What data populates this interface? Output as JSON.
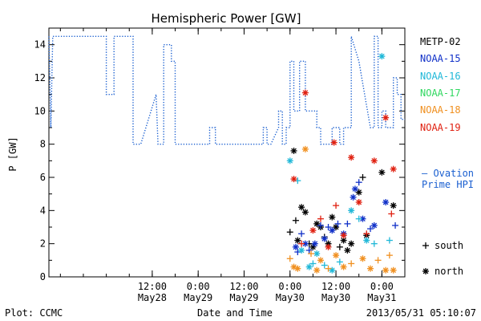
{
  "chart_data": {
    "type": "scatter",
    "title": "Hemispheric Power [GW]",
    "ylabel": "P [GW]",
    "xlabel": "Date and Time",
    "ylim": [
      0,
      15
    ],
    "xlim": [
      "2013-05-27T09:00",
      "2013-05-31T06:00"
    ],
    "yticks": [
      "0",
      "2",
      "4",
      "6",
      "8",
      "10",
      "12",
      "14"
    ],
    "xticks": [
      {
        "at": "2013-05-28T12:00",
        "time": "12:00",
        "date": "May28"
      },
      {
        "at": "2013-05-29T00:00",
        "time": "0:00",
        "date": "May29"
      },
      {
        "at": "2013-05-29T12:00",
        "time": "12:00",
        "date": "May29"
      },
      {
        "at": "2013-05-30T00:00",
        "time": "0:00",
        "date": "May30"
      },
      {
        "at": "2013-05-30T12:00",
        "time": "12:00",
        "date": "May30"
      },
      {
        "at": "2013-05-31T00:00",
        "time": "0:00",
        "date": "May31"
      }
    ],
    "legend_position": "right",
    "colors": {
      "ovation": "#1a5fd0",
      "METP-02": "#000000",
      "NOAA-15": "#1030c8",
      "NOAA-16": "#20b8d8",
      "NOAA-17": "#30d860",
      "NOAA-18": "#f09020",
      "NOAA-19": "#e02010"
    },
    "ovation_line": {
      "name": "Ovation Prime HPI",
      "points": [
        [
          "2013-05-27T09:00",
          14.5
        ],
        [
          "2013-05-27T09:30",
          9
        ],
        [
          "2013-05-27T10:00",
          14.5
        ],
        [
          "2013-05-28T00:00",
          14.5
        ],
        [
          "2013-05-28T00:00",
          11
        ],
        [
          "2013-05-28T02:00",
          11
        ],
        [
          "2013-05-28T02:00",
          14.5
        ],
        [
          "2013-05-28T07:00",
          14.5
        ],
        [
          "2013-05-28T07:00",
          8
        ],
        [
          "2013-05-28T09:00",
          8
        ],
        [
          "2013-05-28T13:00",
          11
        ],
        [
          "2013-05-28T13:30",
          8
        ],
        [
          "2013-05-28T15:00",
          8
        ],
        [
          "2013-05-28T15:00",
          14
        ],
        [
          "2013-05-28T17:00",
          14
        ],
        [
          "2013-05-28T17:00",
          13
        ],
        [
          "2013-05-28T18:00",
          13
        ],
        [
          "2013-05-28T18:00",
          8
        ],
        [
          "2013-05-29T03:00",
          8
        ],
        [
          "2013-05-29T03:00",
          9
        ],
        [
          "2013-05-29T04:30",
          9
        ],
        [
          "2013-05-29T04:30",
          8
        ],
        [
          "2013-05-29T17:00",
          8
        ],
        [
          "2013-05-29T17:00",
          9
        ],
        [
          "2013-05-29T18:00",
          9
        ],
        [
          "2013-05-29T18:00",
          8
        ],
        [
          "2013-05-29T19:00",
          8
        ],
        [
          "2013-05-29T21:00",
          9
        ],
        [
          "2013-05-29T21:00",
          10
        ],
        [
          "2013-05-29T22:00",
          10
        ],
        [
          "2013-05-29T22:00",
          8
        ],
        [
          "2013-05-29T23:00",
          8
        ],
        [
          "2013-05-29T23:00",
          9
        ],
        [
          "2013-05-30T00:00",
          9
        ],
        [
          "2013-05-30T00:00",
          13
        ],
        [
          "2013-05-30T01:00",
          13
        ],
        [
          "2013-05-30T01:00",
          10
        ],
        [
          "2013-05-30T02:30",
          10
        ],
        [
          "2013-05-30T02:30",
          13
        ],
        [
          "2013-05-30T04:00",
          13
        ],
        [
          "2013-05-30T04:00",
          10
        ],
        [
          "2013-05-30T07:00",
          10
        ],
        [
          "2013-05-30T07:00",
          9
        ],
        [
          "2013-05-30T08:00",
          9
        ],
        [
          "2013-05-30T08:00",
          8
        ],
        [
          "2013-05-30T11:00",
          8
        ],
        [
          "2013-05-30T11:00",
          9
        ],
        [
          "2013-05-30T13:00",
          9
        ],
        [
          "2013-05-30T13:00",
          8
        ],
        [
          "2013-05-30T14:00",
          8
        ],
        [
          "2013-05-30T14:00",
          9
        ],
        [
          "2013-05-30T16:00",
          9
        ],
        [
          "2013-05-30T16:00",
          14.5
        ],
        [
          "2013-05-30T18:00",
          13
        ],
        [
          "2013-05-30T21:00",
          9
        ],
        [
          "2013-05-30T22:00",
          9
        ],
        [
          "2013-05-30T22:00",
          14.5
        ],
        [
          "2013-05-30T23:00",
          14.5
        ],
        [
          "2013-05-30T23:00",
          9
        ],
        [
          "2013-05-31T00:00",
          9
        ],
        [
          "2013-05-31T00:00",
          10
        ],
        [
          "2013-05-31T01:00",
          10
        ],
        [
          "2013-05-31T01:00",
          9
        ],
        [
          "2013-05-31T03:00",
          9
        ],
        [
          "2013-05-31T03:00",
          12
        ],
        [
          "2013-05-31T04:00",
          12
        ],
        [
          "2013-05-31T04:00",
          11
        ],
        [
          "2013-05-31T05:00",
          11
        ],
        [
          "2013-05-31T05:00",
          9.5
        ],
        [
          "2013-05-31T06:00",
          9.5
        ]
      ]
    },
    "series": [
      {
        "name": "METP-02",
        "points": [
          [
            "2013-05-30T00:00",
            2.7,
            "south"
          ],
          [
            "2013-05-30T01:00",
            7.6,
            "north"
          ],
          [
            "2013-05-30T01:30",
            3.4,
            "south"
          ],
          [
            "2013-05-30T02:00",
            2.2,
            "north"
          ],
          [
            "2013-05-30T03:00",
            4.2,
            "north"
          ],
          [
            "2013-05-30T04:00",
            3.9,
            "north"
          ],
          [
            "2013-05-30T05:00",
            2.0,
            "south"
          ],
          [
            "2013-05-30T06:00",
            1.8,
            "north"
          ],
          [
            "2013-05-30T07:00",
            3.2,
            "north"
          ],
          [
            "2013-05-30T08:00",
            3.0,
            "north"
          ],
          [
            "2013-05-30T09:00",
            2.4,
            "south"
          ],
          [
            "2013-05-30T10:00",
            2.0,
            "north"
          ],
          [
            "2013-05-30T11:00",
            3.6,
            "north"
          ],
          [
            "2013-05-30T12:00",
            3.0,
            "north"
          ],
          [
            "2013-05-30T13:00",
            1.8,
            "south"
          ],
          [
            "2013-05-30T14:00",
            2.2,
            "north"
          ],
          [
            "2013-05-30T15:00",
            1.6,
            "north"
          ],
          [
            "2013-05-30T16:00",
            2.0,
            "north"
          ],
          [
            "2013-05-30T18:00",
            5.1,
            "north"
          ],
          [
            "2013-05-30T19:00",
            6.0,
            "south"
          ],
          [
            "2013-05-30T20:00",
            2.5,
            "north"
          ],
          [
            "2013-05-31T00:00",
            6.3,
            "north"
          ],
          [
            "2013-05-31T03:00",
            4.3,
            "north"
          ]
        ]
      },
      {
        "name": "NOAA-15",
        "points": [
          [
            "2013-05-30T01:30",
            1.8,
            "north"
          ],
          [
            "2013-05-30T02:00",
            1.5,
            "south"
          ],
          [
            "2013-05-30T03:00",
            2.6,
            "south"
          ],
          [
            "2013-05-30T04:00",
            2.0,
            "north"
          ],
          [
            "2013-05-30T05:00",
            1.6,
            "south"
          ],
          [
            "2013-05-30T06:30",
            2.0,
            "north"
          ],
          [
            "2013-05-30T08:00",
            3.1,
            "south"
          ],
          [
            "2013-05-30T09:00",
            2.3,
            "north"
          ],
          [
            "2013-05-30T10:00",
            3.0,
            "south"
          ],
          [
            "2013-05-30T11:00",
            2.8,
            "north"
          ],
          [
            "2013-05-30T12:30",
            3.2,
            "south"
          ],
          [
            "2013-05-30T14:00",
            2.6,
            "north"
          ],
          [
            "2013-05-30T15:00",
            3.2,
            "south"
          ],
          [
            "2013-05-30T16:30",
            4.8,
            "north"
          ],
          [
            "2013-05-30T17:00",
            5.3,
            "north"
          ],
          [
            "2013-05-30T18:00",
            5.7,
            "south"
          ],
          [
            "2013-05-30T19:00",
            3.5,
            "north"
          ],
          [
            "2013-05-30T21:00",
            2.9,
            "south"
          ],
          [
            "2013-05-30T22:00",
            3.1,
            "north"
          ],
          [
            "2013-05-31T01:00",
            4.5,
            "north"
          ],
          [
            "2013-05-31T03:30",
            3.1,
            "south"
          ]
        ]
      },
      {
        "name": "NOAA-16",
        "points": [
          [
            "2013-05-30T00:00",
            7.0,
            "north"
          ],
          [
            "2013-05-30T02:00",
            5.8,
            "south"
          ],
          [
            "2013-05-30T03:00",
            1.6,
            "north"
          ],
          [
            "2013-05-30T05:00",
            0.6,
            "north"
          ],
          [
            "2013-05-30T06:00",
            0.8,
            "south"
          ],
          [
            "2013-05-30T07:00",
            1.4,
            "north"
          ],
          [
            "2013-05-30T09:00",
            0.7,
            "south"
          ],
          [
            "2013-05-30T11:00",
            0.4,
            "north"
          ],
          [
            "2013-05-30T13:00",
            0.9,
            "south"
          ],
          [
            "2013-05-30T16:00",
            4.0,
            "north"
          ],
          [
            "2013-05-30T18:00",
            3.5,
            "south"
          ],
          [
            "2013-05-30T20:00",
            2.2,
            "north"
          ],
          [
            "2013-05-30T22:00",
            2.0,
            "south"
          ],
          [
            "2013-05-31T00:00",
            13.3,
            "north"
          ],
          [
            "2013-05-31T02:00",
            2.2,
            "south"
          ]
        ]
      },
      {
        "name": "NOAA-17",
        "points": []
      },
      {
        "name": "NOAA-18",
        "points": [
          [
            "2013-05-30T00:00",
            1.1,
            "south"
          ],
          [
            "2013-05-30T01:00",
            0.6,
            "north"
          ],
          [
            "2013-05-30T02:00",
            0.5,
            "north"
          ],
          [
            "2013-05-30T04:00",
            7.7,
            "north"
          ],
          [
            "2013-05-30T05:30",
            1.4,
            "south"
          ],
          [
            "2013-05-30T07:00",
            0.4,
            "north"
          ],
          [
            "2013-05-30T08:00",
            1.0,
            "north"
          ],
          [
            "2013-05-30T10:00",
            0.5,
            "south"
          ],
          [
            "2013-05-30T12:00",
            1.3,
            "north"
          ],
          [
            "2013-05-30T14:00",
            0.6,
            "north"
          ],
          [
            "2013-05-30T16:00",
            0.8,
            "south"
          ],
          [
            "2013-05-30T19:00",
            1.1,
            "north"
          ],
          [
            "2013-05-30T21:00",
            0.5,
            "north"
          ],
          [
            "2013-05-30T23:00",
            1.0,
            "south"
          ],
          [
            "2013-05-31T01:00",
            0.4,
            "north"
          ],
          [
            "2013-05-31T03:00",
            0.4,
            "north"
          ],
          [
            "2013-05-31T02:00",
            1.3,
            "south"
          ]
        ]
      },
      {
        "name": "NOAA-19",
        "points": [
          [
            "2013-05-30T01:00",
            5.9,
            "north"
          ],
          [
            "2013-05-30T03:00",
            2.0,
            "south"
          ],
          [
            "2013-05-30T04:00",
            11.1,
            "north"
          ],
          [
            "2013-05-30T06:00",
            2.8,
            "north"
          ],
          [
            "2013-05-30T08:00",
            3.5,
            "south"
          ],
          [
            "2013-05-30T10:00",
            1.8,
            "north"
          ],
          [
            "2013-05-30T11:30",
            8.1,
            "north"
          ],
          [
            "2013-05-30T12:00",
            4.3,
            "south"
          ],
          [
            "2013-05-30T14:00",
            2.5,
            "north"
          ],
          [
            "2013-05-30T16:00",
            7.2,
            "north"
          ],
          [
            "2013-05-30T18:00",
            4.5,
            "north"
          ],
          [
            "2013-05-30T20:00",
            2.6,
            "south"
          ],
          [
            "2013-05-30T22:00",
            7.0,
            "north"
          ],
          [
            "2013-05-31T01:00",
            9.6,
            "north"
          ],
          [
            "2013-05-31T03:00",
            6.5,
            "north"
          ],
          [
            "2013-05-31T02:30",
            3.8,
            "south"
          ]
        ]
      }
    ],
    "marker_legend": [
      {
        "symbol": "+",
        "label": "south"
      },
      {
        "symbol": "*",
        "label": "north"
      }
    ]
  },
  "ui": {
    "title": "Hemispheric Power [GW]",
    "ylabel": "P [GW]",
    "xlabel": "Date and Time",
    "legend": [
      "METP-02",
      "NOAA-15",
      "NOAA-16",
      "NOAA-17",
      "NOAA-18",
      "NOAA-19"
    ],
    "ovation_label_line1": "— Ovation",
    "ovation_label_line2": "Prime HPI",
    "footer_left": "Plot: CCMC",
    "footer_right": "2013/05/31 05:10:07"
  }
}
